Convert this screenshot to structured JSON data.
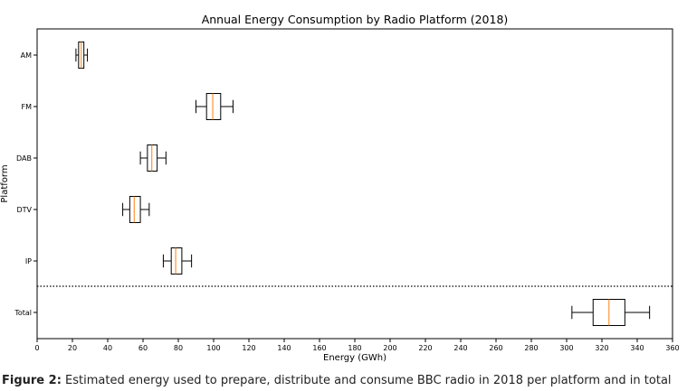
{
  "chart_data": {
    "type": "boxplot",
    "orientation": "horizontal",
    "title": "Annual Energy Consumption by Radio Platform (2018)",
    "xlabel": "Energy (GWh)",
    "ylabel": "Platform",
    "xlim": [
      0,
      360
    ],
    "xticks": [
      0,
      20,
      40,
      60,
      80,
      100,
      120,
      140,
      160,
      180,
      200,
      220,
      240,
      260,
      280,
      300,
      320,
      340,
      360
    ],
    "categories": [
      "AM",
      "FM",
      "DAB",
      "DTV",
      "IP",
      "Total"
    ],
    "boxes": [
      {
        "name": "AM",
        "whisker_low": 22,
        "q1": 23.5,
        "median": 25,
        "q3": 26.5,
        "whisker_high": 28.5
      },
      {
        "name": "FM",
        "whisker_low": 90,
        "q1": 96,
        "median": 99.5,
        "q3": 104,
        "whisker_high": 111
      },
      {
        "name": "DAB",
        "whisker_low": 58.5,
        "q1": 62.5,
        "median": 65,
        "q3": 68,
        "whisker_high": 73
      },
      {
        "name": "DTV",
        "whisker_low": 48.5,
        "q1": 52.5,
        "median": 55,
        "q3": 58.5,
        "whisker_high": 63.5
      },
      {
        "name": "IP",
        "whisker_low": 71.5,
        "q1": 76,
        "median": 78.5,
        "q3": 82,
        "whisker_high": 87.5
      },
      {
        "name": "Total",
        "whisker_low": 303,
        "q1": 315,
        "median": 324,
        "q3": 333,
        "whisker_high": 347
      }
    ],
    "separator": {
      "between": [
        "IP",
        "Total"
      ],
      "style": "dotted"
    },
    "colors": {
      "median": "#ff7f0e",
      "box": "#000000"
    }
  },
  "caption": {
    "label": "Figure 2:",
    "text": " Estimated energy used to prepare, distribute and consume BBC radio in 2018 per platform and in total"
  }
}
